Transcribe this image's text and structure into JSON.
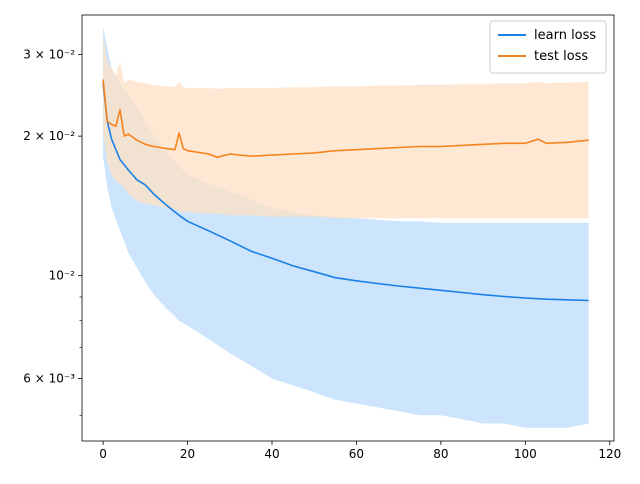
{
  "chart_data": {
    "type": "line",
    "title": "",
    "xlabel": "",
    "ylabel": "",
    "y_scale": "log",
    "xlim": [
      -5,
      121
    ],
    "ylim": [
      0.0044,
      0.0365
    ],
    "x_ticks": [
      0,
      20,
      40,
      60,
      80,
      100,
      120
    ],
    "x_tick_labels": [
      "0",
      "20",
      "40",
      "60",
      "80",
      "100",
      "120"
    ],
    "y_major_ticks": [
      0.006,
      0.01,
      0.02,
      0.03
    ],
    "y_major_tick_labels": [
      "6 × 10⁻³",
      "10⁻²",
      "2 × 10⁻²",
      "3 × 10⁻²"
    ],
    "y_minor_ticks": [
      0.005,
      0.007,
      0.008,
      0.009
    ],
    "grid": false,
    "legend_position": "top-right",
    "series": [
      {
        "name": "learn loss",
        "color": "#1a80e6",
        "band_color": "#cce5fc",
        "x": [
          0,
          1,
          2,
          4,
          6,
          8,
          10,
          12,
          15,
          18,
          20,
          25,
          30,
          35,
          40,
          45,
          50,
          55,
          60,
          65,
          70,
          75,
          80,
          85,
          90,
          95,
          100,
          105,
          110,
          115
        ],
        "values": [
          0.026,
          0.0215,
          0.0197,
          0.0178,
          0.0169,
          0.0161,
          0.0157,
          0.015,
          0.0142,
          0.0135,
          0.0131,
          0.0125,
          0.0119,
          0.0113,
          0.0109,
          0.0105,
          0.0102,
          0.0099,
          0.00975,
          0.00962,
          0.0095,
          0.0094,
          0.0093,
          0.0092,
          0.0091,
          0.00902,
          0.00895,
          0.0089,
          0.00887,
          0.00884
        ],
        "lower": [
          0.018,
          0.0155,
          0.014,
          0.0125,
          0.0112,
          0.0104,
          0.0097,
          0.0091,
          0.0085,
          0.008,
          0.0078,
          0.0073,
          0.0068,
          0.0064,
          0.006,
          0.0058,
          0.0056,
          0.0054,
          0.0053,
          0.0052,
          0.0051,
          0.005,
          0.005,
          0.0049,
          0.0048,
          0.0048,
          0.0047,
          0.0047,
          0.0047,
          0.0048
        ],
        "upper": [
          0.0345,
          0.031,
          0.028,
          0.026,
          0.0245,
          0.023,
          0.0215,
          0.02,
          0.0185,
          0.0172,
          0.0165,
          0.0158,
          0.0152,
          0.0146,
          0.014,
          0.0137,
          0.0135,
          0.0134,
          0.0133,
          0.0132,
          0.0131,
          0.0131,
          0.013,
          0.013,
          0.013,
          0.013,
          0.013,
          0.013,
          0.013,
          0.013
        ]
      },
      {
        "name": "test loss",
        "color": "#f5841f",
        "band_color": "#ffe0c4",
        "x": [
          0,
          1,
          2,
          3,
          4,
          5,
          6,
          8,
          10,
          12,
          15,
          17,
          18,
          19,
          20,
          25,
          27,
          30,
          35,
          40,
          45,
          50,
          55,
          60,
          65,
          70,
          75,
          80,
          85,
          90,
          95,
          100,
          103,
          105,
          110,
          115
        ],
        "values": [
          0.0265,
          0.0215,
          0.0212,
          0.021,
          0.0228,
          0.02,
          0.0202,
          0.0196,
          0.0192,
          0.019,
          0.0188,
          0.0187,
          0.0203,
          0.0188,
          0.0186,
          0.0183,
          0.018,
          0.0183,
          0.0181,
          0.0182,
          0.0183,
          0.0184,
          0.0186,
          0.0187,
          0.0188,
          0.0189,
          0.019,
          0.019,
          0.0191,
          0.0192,
          0.0193,
          0.0193,
          0.0197,
          0.0193,
          0.0194,
          0.0196
        ],
        "lower": [
          0.0205,
          0.0175,
          0.0165,
          0.016,
          0.0158,
          0.0155,
          0.015,
          0.0145,
          0.0143,
          0.0142,
          0.014,
          0.0139,
          0.0138,
          0.0137,
          0.0137,
          0.0136,
          0.0136,
          0.0135,
          0.0135,
          0.0134,
          0.0134,
          0.0134,
          0.0133,
          0.0133,
          0.0133,
          0.0133,
          0.0133,
          0.0133,
          0.0133,
          0.0133,
          0.0133,
          0.0133,
          0.0133,
          0.0133,
          0.0133,
          0.0133
        ],
        "upper": [
          0.033,
          0.029,
          0.028,
          0.027,
          0.029,
          0.026,
          0.0265,
          0.0262,
          0.026,
          0.0258,
          0.0256,
          0.0255,
          0.0262,
          0.0255,
          0.0254,
          0.0254,
          0.0253,
          0.0254,
          0.0254,
          0.0254,
          0.0255,
          0.0255,
          0.0256,
          0.0256,
          0.0257,
          0.0257,
          0.0258,
          0.0258,
          0.0259,
          0.0259,
          0.026,
          0.026,
          0.0262,
          0.026,
          0.0261,
          0.0262
        ]
      }
    ]
  }
}
